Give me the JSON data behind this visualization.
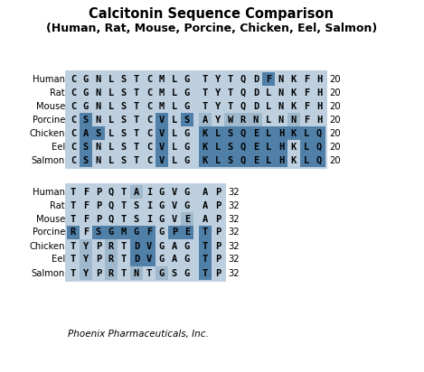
{
  "title1": "Calcitonin Sequence Comparison",
  "title2": "(Human, Rat, Mouse, Porcine, Chicken, Eel, Salmon)",
  "footer": "Phoenix Pharmaceuticals, Inc.",
  "species": [
    "Human",
    "Rat",
    "Mouse",
    "Porcine",
    "Chicken",
    "Eel",
    "Salmon"
  ],
  "block1_seqs": [
    [
      "C",
      "G",
      "N",
      "L",
      "S",
      "T",
      "C",
      "M",
      "L",
      "G"
    ],
    [
      "C",
      "G",
      "N",
      "L",
      "S",
      "T",
      "C",
      "M",
      "L",
      "G"
    ],
    [
      "C",
      "G",
      "N",
      "L",
      "S",
      "T",
      "C",
      "M",
      "L",
      "G"
    ],
    [
      "C",
      "S",
      "N",
      "L",
      "S",
      "T",
      "C",
      "V",
      "L",
      "S"
    ],
    [
      "C",
      "A",
      "S",
      "L",
      "S",
      "T",
      "C",
      "V",
      "L",
      "G"
    ],
    [
      "C",
      "S",
      "N",
      "L",
      "S",
      "T",
      "C",
      "V",
      "L",
      "G"
    ],
    [
      "C",
      "S",
      "N",
      "L",
      "S",
      "T",
      "C",
      "V",
      "L",
      "G"
    ]
  ],
  "block2_seqs": [
    [
      "T",
      "Y",
      "T",
      "Q",
      "D",
      "F",
      "N",
      "K",
      "F",
      "H"
    ],
    [
      "T",
      "Y",
      "T",
      "Q",
      "D",
      "L",
      "N",
      "K",
      "F",
      "H"
    ],
    [
      "T",
      "Y",
      "T",
      "Q",
      "D",
      "L",
      "N",
      "K",
      "F",
      "H"
    ],
    [
      "A",
      "Y",
      "W",
      "R",
      "N",
      "L",
      "N",
      "N",
      "F",
      "H"
    ],
    [
      "K",
      "L",
      "S",
      "Q",
      "E",
      "L",
      "H",
      "K",
      "L",
      "Q"
    ],
    [
      "K",
      "L",
      "S",
      "Q",
      "E",
      "L",
      "H",
      "K",
      "L",
      "Q"
    ],
    [
      "K",
      "L",
      "S",
      "Q",
      "E",
      "L",
      "H",
      "K",
      "L",
      "Q"
    ]
  ],
  "block3_seqs": [
    [
      "T",
      "F",
      "P",
      "Q",
      "T",
      "A",
      "I",
      "G",
      "V",
      "G"
    ],
    [
      "T",
      "F",
      "P",
      "Q",
      "T",
      "S",
      "I",
      "G",
      "V",
      "G"
    ],
    [
      "T",
      "F",
      "P",
      "Q",
      "T",
      "S",
      "I",
      "G",
      "V",
      "E"
    ],
    [
      "R",
      "F",
      "S",
      "G",
      "M",
      "G",
      "F",
      "G",
      "P",
      "E"
    ],
    [
      "T",
      "Y",
      "P",
      "R",
      "T",
      "D",
      "V",
      "G",
      "A",
      "G"
    ],
    [
      "T",
      "Y",
      "P",
      "R",
      "T",
      "D",
      "V",
      "G",
      "A",
      "G"
    ],
    [
      "T",
      "Y",
      "P",
      "R",
      "T",
      "N",
      "T",
      "G",
      "S",
      "G"
    ]
  ],
  "block4_seqs": [
    [
      "A",
      "P"
    ],
    [
      "A",
      "P"
    ],
    [
      "A",
      "P"
    ],
    [
      "T",
      "P"
    ],
    [
      "T",
      "P"
    ],
    [
      "T",
      "P"
    ],
    [
      "T",
      "P"
    ]
  ],
  "b1_dark": [
    [],
    [],
    [],
    [
      1,
      7,
      9
    ],
    [
      1,
      2,
      7
    ],
    [
      1,
      7
    ],
    [
      1,
      7
    ]
  ],
  "b1_light": [
    [],
    [],
    [],
    [],
    [],
    [],
    []
  ],
  "b2_dark": [
    [
      5
    ],
    [],
    [],
    [],
    [
      0,
      1,
      2,
      3,
      4,
      5,
      6,
      7,
      8,
      9
    ],
    [
      0,
      1,
      2,
      3,
      4,
      5,
      6,
      8,
      9
    ],
    [
      0,
      1,
      2,
      3,
      4,
      5,
      6,
      8,
      9
    ]
  ],
  "b2_light": [
    [],
    [],
    [],
    [
      0,
      2,
      3,
      4,
      7
    ],
    [],
    [],
    []
  ],
  "b3_dark": [
    [],
    [],
    [],
    [
      0,
      2,
      3,
      4,
      5,
      6,
      8,
      9
    ],
    [
      5,
      6
    ],
    [
      5,
      6
    ],
    []
  ],
  "b3_light": [
    [
      5
    ],
    [],
    [
      9
    ],
    [],
    [
      1,
      3
    ],
    [
      1,
      3
    ],
    [
      1,
      3,
      5,
      7
    ]
  ],
  "b4_dark": [
    [],
    [],
    [],
    [
      0
    ],
    [
      0
    ],
    [
      0
    ],
    [
      0
    ]
  ],
  "b4_light": [
    [],
    [],
    [],
    [],
    [],
    [],
    []
  ],
  "bg_color": "#bed0e0",
  "light_hl": "#a0b8cc",
  "dark_hl": "#5080a8",
  "white_cell": "#ffffff"
}
